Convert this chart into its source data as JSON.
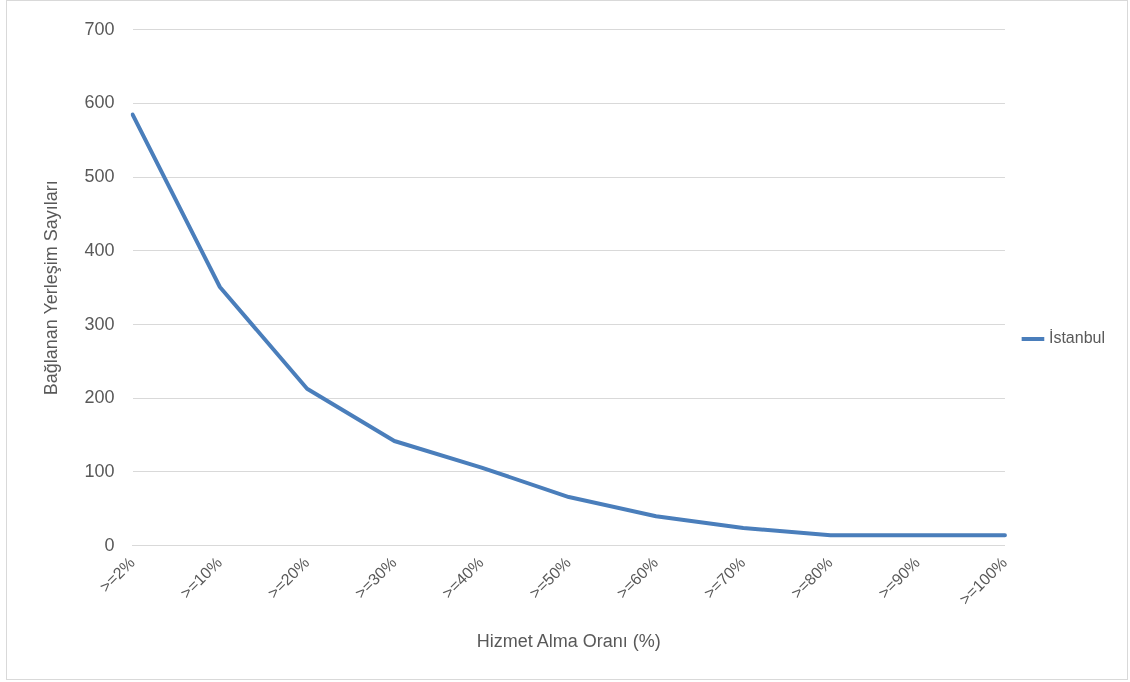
{
  "chart_data": {
    "type": "line",
    "xlabel": "Hizmet Alma Oranı (%)",
    "ylabel": "Bağlanan Yerleşim Sayıları",
    "categories": [
      ">=2%",
      ">=10%",
      ">=20%",
      ">=30%",
      ">=40%",
      ">=50%",
      ">=60%",
      ">=70%",
      ">=80%",
      ">=90%",
      ">=100%"
    ],
    "series": [
      {
        "name": "İstanbul",
        "color": "#4a7ebb",
        "values": [
          585,
          351,
          213,
          142,
          106,
          66,
          40,
          24,
          14,
          14,
          14
        ]
      }
    ],
    "ylim": [
      0,
      700
    ],
    "yticks": [
      0,
      100,
      200,
      300,
      400,
      500,
      600,
      700
    ],
    "grid": "y",
    "legend": "right",
    "marker": "none",
    "line_style": "solid"
  }
}
